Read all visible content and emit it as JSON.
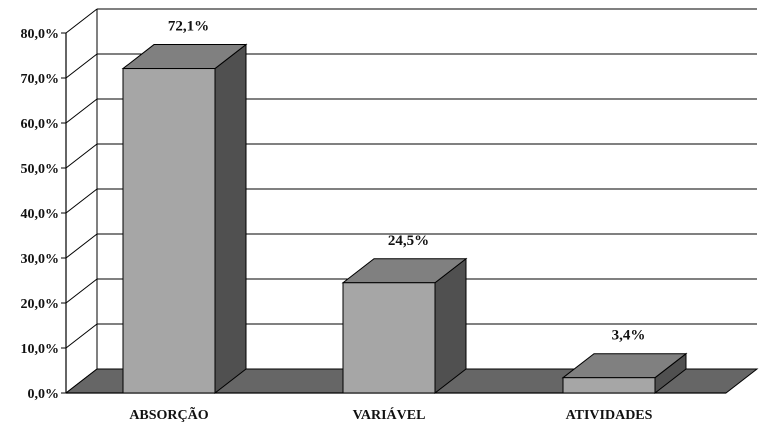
{
  "chart_data": {
    "type": "bar",
    "style": "3d-column",
    "categories": [
      "ABSORÇÃO",
      "VARIÁVEL",
      "ATIVIDADES"
    ],
    "values": [
      72.1,
      24.5,
      3.4
    ],
    "value_labels": [
      "72,1%",
      "24,5%",
      "3,4%"
    ],
    "y_ticks": [
      "0,0%",
      "10,0%",
      "20,0%",
      "30,0%",
      "40,0%",
      "50,0%",
      "60,0%",
      "70,0%",
      "80,0%"
    ],
    "ylim": [
      0,
      80
    ],
    "grid": true,
    "legend": "none",
    "colors": {
      "bar_front": "#a6a6a6",
      "bar_top": "#808080",
      "bar_side": "#505050",
      "floor": "#666666",
      "grid": "#000000"
    }
  }
}
